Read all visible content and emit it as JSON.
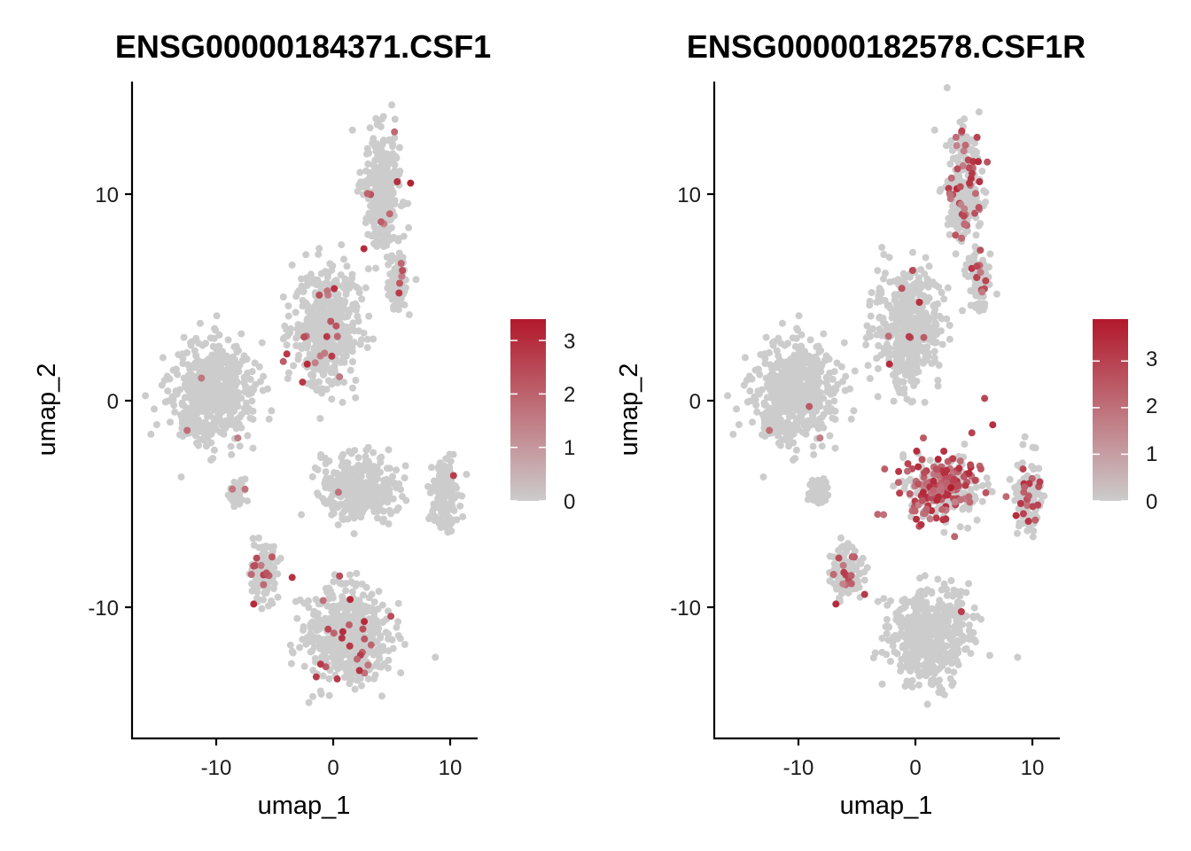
{
  "colors": {
    "low": "#CCCCCC",
    "high": "#B2182B"
  },
  "chart_data": [
    {
      "type": "scatter",
      "title": "ENSG00000184371.CSF1",
      "xlabel": "umap_1",
      "ylabel": "umap_2",
      "xlim": [
        -17.3,
        12.3
      ],
      "ylim": [
        -16.5,
        15.8
      ],
      "xticks": [
        -10,
        0,
        10
      ],
      "xtick_labels": [
        "-10",
        "0",
        "10"
      ],
      "yticks": [
        -10,
        0,
        10
      ],
      "ytick_labels": [
        "-10",
        "0",
        "10"
      ],
      "legend": {
        "position": "right",
        "max": 3.4,
        "ticks": [
          0,
          1,
          2,
          3
        ],
        "tick_labels": [
          "0",
          "1",
          "2",
          "3"
        ]
      },
      "clusters": [
        {
          "name": "left-blob",
          "center": [
            -10.5,
            0.5
          ],
          "spread": [
            3.2,
            2.3
          ],
          "expression_rate": 0.004
        },
        {
          "name": "center-top",
          "center": [
            -0.7,
            3.7
          ],
          "spread": [
            2.5,
            2.6
          ],
          "expression_rate": 0.025
        },
        {
          "name": "top-right",
          "center": [
            4.2,
            10.4
          ],
          "spread": [
            1.4,
            2.6
          ],
          "expression_rate": 0.02
        },
        {
          "name": "top-right-tail",
          "center": [
            5.5,
            6.0
          ],
          "spread": [
            0.8,
            1.2
          ],
          "expression_rate": 0.03
        },
        {
          "name": "middle-right",
          "center": [
            2.3,
            -4.2
          ],
          "spread": [
            3.0,
            1.4
          ],
          "expression_rate": 0.002
        },
        {
          "name": "far-right",
          "center": [
            9.6,
            -4.6
          ],
          "spread": [
            1.0,
            1.6
          ],
          "expression_rate": 0.003
        },
        {
          "name": "small-left",
          "center": [
            -8.4,
            -4.4
          ],
          "spread": [
            0.6,
            0.6
          ],
          "expression_rate": 0.05
        },
        {
          "name": "bottom-left",
          "center": [
            -6.0,
            -8.5
          ],
          "spread": [
            1.1,
            1.1
          ],
          "expression_rate": 0.06
        },
        {
          "name": "bottom-triangle",
          "center": [
            1.2,
            -11.5
          ],
          "spread": [
            3.2,
            2.1
          ],
          "expression_rate": 0.03
        }
      ],
      "highlight_points": [
        {
          "x": 6.6,
          "y": 10.8,
          "value": 3.2
        },
        {
          "x": 1.4,
          "y": -9.7,
          "value": 3.1
        },
        {
          "x": 2.2,
          "y": -13.2,
          "value": 2.9
        },
        {
          "x": -2.7,
          "y": 1.0,
          "value": 2.8
        },
        {
          "x": 10.3,
          "y": -3.6,
          "value": 2.7
        },
        {
          "x": 5.9,
          "y": 6.5,
          "value": 2.4
        },
        {
          "x": -5.8,
          "y": -8.4,
          "value": 2.3
        },
        {
          "x": -11.4,
          "y": 1.2,
          "value": 1.6
        }
      ]
    },
    {
      "type": "scatter",
      "title": "ENSG00000182578.CSF1R",
      "xlabel": "umap_1",
      "ylabel": "umap_2",
      "xlim": [
        -17.3,
        12.3
      ],
      "ylim": [
        -16.5,
        15.8
      ],
      "xticks": [
        -10,
        0,
        10
      ],
      "xtick_labels": [
        "-10",
        "0",
        "10"
      ],
      "yticks": [
        -10,
        0,
        10
      ],
      "ytick_labels": [
        "-10",
        "0",
        "10"
      ],
      "legend": {
        "position": "right",
        "max": 3.9,
        "ticks": [
          0,
          1,
          2,
          3
        ],
        "tick_labels": [
          "0",
          "1",
          "2",
          "3"
        ]
      },
      "clusters": [
        {
          "name": "left-blob",
          "center": [
            -10.5,
            0.5
          ],
          "spread": [
            3.2,
            2.3
          ],
          "expression_rate": 0.003
        },
        {
          "name": "center-top",
          "center": [
            -0.7,
            3.7
          ],
          "spread": [
            2.5,
            2.6
          ],
          "expression_rate": 0.012
        },
        {
          "name": "top-right",
          "center": [
            4.2,
            10.4
          ],
          "spread": [
            1.4,
            2.6
          ],
          "expression_rate": 0.12
        },
        {
          "name": "top-right-tail",
          "center": [
            5.5,
            6.0
          ],
          "spread": [
            0.8,
            1.2
          ],
          "expression_rate": 0.1
        },
        {
          "name": "middle-right",
          "center": [
            2.3,
            -4.2
          ],
          "spread": [
            3.0,
            1.4
          ],
          "expression_rate": 0.45
        },
        {
          "name": "far-right",
          "center": [
            9.6,
            -4.6
          ],
          "spread": [
            1.0,
            1.6
          ],
          "expression_rate": 0.08
        },
        {
          "name": "small-left",
          "center": [
            -8.4,
            -4.4
          ],
          "spread": [
            0.6,
            0.6
          ],
          "expression_rate": 0.0
        },
        {
          "name": "bottom-left",
          "center": [
            -6.0,
            -8.5
          ],
          "spread": [
            1.1,
            1.1
          ],
          "expression_rate": 0.06
        },
        {
          "name": "bottom-triangle",
          "center": [
            1.2,
            -11.5
          ],
          "spread": [
            3.2,
            2.1
          ],
          "expression_rate": 0.0
        }
      ],
      "highlight_points": [
        {
          "x": 3.0,
          "y": -4.2,
          "value": 3.8
        },
        {
          "x": 1.9,
          "y": -2.8,
          "value": 3.6
        },
        {
          "x": 6.6,
          "y": -1.1,
          "value": 3.4
        },
        {
          "x": -1.5,
          "y": -3.4,
          "value": 3.2
        },
        {
          "x": 3.9,
          "y": -10.3,
          "value": 3.1
        },
        {
          "x": 4.8,
          "y": -1.5,
          "value": 3.0
        },
        {
          "x": 5.9,
          "y": 0.2,
          "value": 2.9
        },
        {
          "x": -0.3,
          "y": 6.5,
          "value": 2.8
        },
        {
          "x": -9.2,
          "y": -0.2,
          "value": 2.5
        },
        {
          "x": 5.4,
          "y": 9.6,
          "value": 2.6
        },
        {
          "x": 9.7,
          "y": -4.6,
          "value": 2.4
        },
        {
          "x": -5.5,
          "y": -7.6,
          "value": 2.3
        }
      ]
    }
  ]
}
